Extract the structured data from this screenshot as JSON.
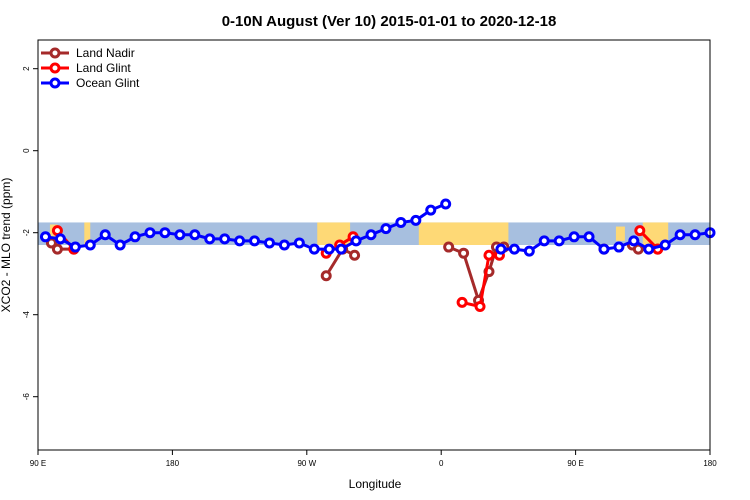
{
  "chart_data": {
    "type": "line",
    "title": "0-10N August (Ver 10)   2015-01-01 to 2020-12-18",
    "xlabel": "Longitude",
    "ylabel": "XCO2 - MLO trend (ppm)",
    "xlim": [
      90,
      540
    ],
    "ylim": [
      -7.3,
      2.7
    ],
    "x_ticks": [
      {
        "value": 90,
        "label": "90 E"
      },
      {
        "value": 180,
        "label": "180"
      },
      {
        "value": 270,
        "label": "90 W"
      },
      {
        "value": 360,
        "label": "0"
      },
      {
        "value": 450,
        "label": "90 E"
      },
      {
        "value": 540,
        "label": "180"
      }
    ],
    "y_ticks": [
      {
        "value": 2,
        "label": "2"
      },
      {
        "value": 0,
        "label": "0"
      },
      {
        "value": -2,
        "label": "-2"
      },
      {
        "value": -4,
        "label": "-4"
      },
      {
        "value": -6,
        "label": "-6"
      }
    ],
    "band": {
      "ymin": -2.3,
      "ymax": -1.75,
      "ocean_color": "#a7bfdf",
      "land_color": "#fed976"
    },
    "land_segments": [
      {
        "x0": 98,
        "x1": 103,
        "ymin": -2.2,
        "ymax": -1.8
      },
      {
        "x0": 121,
        "x1": 125,
        "ymin": -2.3,
        "ymax": -1.75
      },
      {
        "x0": 277,
        "x1": 299,
        "ymin": -2.3,
        "ymax": -1.75
      },
      {
        "x0": 345,
        "x1": 405,
        "ymin": -2.3,
        "ymax": -1.75
      },
      {
        "x0": 477,
        "x1": 483,
        "ymin": -2.2,
        "ymax": -1.85
      },
      {
        "x0": 495,
        "x1": 512,
        "ymin": -2.3,
        "ymax": -1.75
      }
    ],
    "series": [
      {
        "name": "Land Nadir",
        "color": "#a52a2a",
        "segments": [
          [
            [
              99,
              -2.25
            ],
            [
              103,
              -2.4
            ],
            [
              114,
              -2.4
            ]
          ],
          [
            [
              283,
              -3.05
            ],
            [
              294,
              -2.4
            ],
            [
              302,
              -2.55
            ]
          ],
          [
            [
              365,
              -2.35
            ],
            [
              375,
              -2.5
            ],
            [
              385,
              -3.65
            ],
            [
              392,
              -2.95
            ],
            [
              397,
              -2.35
            ],
            [
              402,
              -2.35
            ]
          ],
          [
            [
              469,
              -2.4
            ]
          ],
          [
            [
              488,
              -2.3
            ],
            [
              492,
              -2.4
            ],
            [
              505,
              -2.4
            ]
          ]
        ]
      },
      {
        "name": "Land Glint",
        "color": "#ff0000",
        "segments": [
          [
            [
              103,
              -1.95
            ],
            [
              114,
              -2.4
            ]
          ],
          [
            [
              283,
              -2.5
            ],
            [
              292,
              -2.3
            ],
            [
              301,
              -2.1
            ]
          ],
          [
            [
              374,
              -3.7
            ],
            [
              386,
              -3.8
            ],
            [
              392,
              -2.55
            ],
            [
              399,
              -2.55
            ]
          ],
          [
            [
              493,
              -1.95
            ],
            [
              505,
              -2.4
            ]
          ]
        ]
      },
      {
        "name": "Ocean Glint",
        "color": "#0000ff",
        "segments": [
          [
            [
              95,
              -2.1
            ],
            [
              105,
              -2.15
            ],
            [
              115,
              -2.35
            ],
            [
              125,
              -2.3
            ],
            [
              135,
              -2.05
            ],
            [
              145,
              -2.3
            ],
            [
              155,
              -2.1
            ],
            [
              165,
              -2.0
            ],
            [
              175,
              -2.0
            ],
            [
              185,
              -2.05
            ],
            [
              195,
              -2.05
            ],
            [
              205,
              -2.15
            ],
            [
              215,
              -2.15
            ],
            [
              225,
              -2.2
            ],
            [
              235,
              -2.2
            ],
            [
              245,
              -2.25
            ],
            [
              255,
              -2.3
            ],
            [
              265,
              -2.25
            ],
            [
              275,
              -2.4
            ],
            [
              285,
              -2.4
            ],
            [
              293,
              -2.4
            ],
            [
              303,
              -2.2
            ],
            [
              313,
              -2.05
            ],
            [
              323,
              -1.9
            ],
            [
              333,
              -1.75
            ],
            [
              343,
              -1.7
            ],
            [
              353,
              -1.45
            ],
            [
              363,
              -1.3
            ]
          ],
          [
            [
              400,
              -2.4
            ],
            [
              409,
              -2.4
            ],
            [
              419,
              -2.45
            ],
            [
              429,
              -2.2
            ],
            [
              439,
              -2.2
            ],
            [
              449,
              -2.1
            ],
            [
              459,
              -2.1
            ],
            [
              469,
              -2.4
            ],
            [
              479,
              -2.35
            ],
            [
              489,
              -2.2
            ],
            [
              499,
              -2.4
            ],
            [
              510,
              -2.3
            ],
            [
              520,
              -2.05
            ],
            [
              530,
              -2.05
            ],
            [
              540,
              -2.0
            ]
          ]
        ]
      }
    ],
    "legend_position": "top-left"
  }
}
